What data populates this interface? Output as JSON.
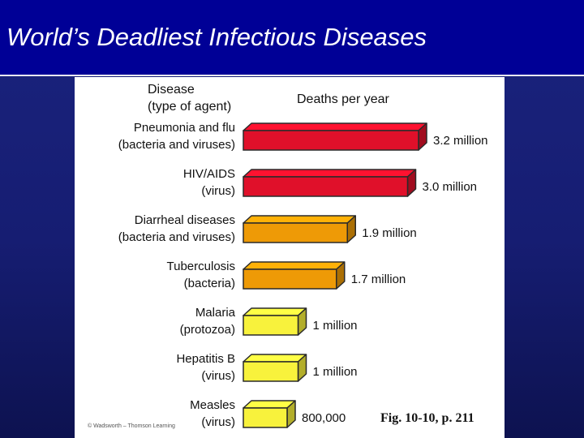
{
  "title": "World’s Deadliest Infectious Diseases",
  "headers": {
    "disease_line1": "Disease",
    "disease_line2": "(type of agent)",
    "deaths": "Deaths per year"
  },
  "figure_ref": "Fig. 10-10, p. 211",
  "credit": "© Wadsworth – Thomson Learning",
  "colors": {
    "red": "#e0102a",
    "orange": "#ee9a06",
    "yellow": "#f8f23c"
  },
  "chart_data": {
    "type": "bar",
    "orientation": "horizontal",
    "title": "",
    "xlabel": "Deaths per year",
    "ylabel": "Disease (type of agent)",
    "categories": [
      "Pneumonia and flu (bacteria and viruses)",
      "HIV/AIDS (virus)",
      "Diarrheal diseases (bacteria and viruses)",
      "Tuberculosis (bacteria)",
      "Malaria (protozoa)",
      "Hepatitis B (virus)",
      "Measles (virus)"
    ],
    "series": [
      {
        "values": [
          3200000,
          3000000,
          1900000,
          1700000,
          1000000,
          1000000,
          800000
        ]
      }
    ],
    "bars": [
      {
        "line1": "Pneumonia and flu",
        "line2": "(bacteria and viruses)",
        "value": 3200000,
        "value_label": "3.2 million",
        "color": "red"
      },
      {
        "line1": "HIV/AIDS",
        "line2": "(virus)",
        "value": 3000000,
        "value_label": "3.0 million",
        "color": "red"
      },
      {
        "line1": "Diarrheal diseases",
        "line2": "(bacteria and viruses)",
        "value": 1900000,
        "value_label": "1.9 million",
        "color": "orange"
      },
      {
        "line1": "Tuberculosis",
        "line2": "(bacteria)",
        "value": 1700000,
        "value_label": "1.7 million",
        "color": "orange"
      },
      {
        "line1": "Malaria",
        "line2": "(protozoa)",
        "value": 1000000,
        "value_label": "1 million",
        "color": "yellow"
      },
      {
        "line1": "Hepatitis B",
        "line2": "(virus)",
        "value": 1000000,
        "value_label": "1 million",
        "color": "yellow"
      },
      {
        "line1": "Measles",
        "line2": "(virus)",
        "value": 800000,
        "value_label": "800,000",
        "color": "yellow"
      }
    ],
    "grid": false,
    "legend": "none"
  }
}
